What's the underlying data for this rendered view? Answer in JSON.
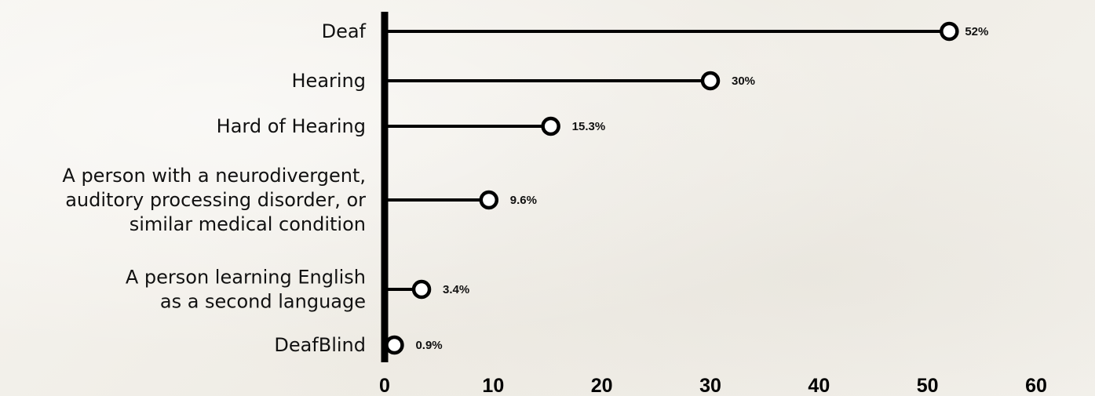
{
  "chart_data": {
    "type": "lollipop",
    "title": "",
    "xlabel": "",
    "ylabel": "",
    "xlim": [
      0,
      60
    ],
    "x_ticks": [
      "0",
      "10",
      "20",
      "30",
      "40",
      "50",
      "60"
    ],
    "grid": false,
    "legend": "none",
    "categories": [
      [
        "Deaf"
      ],
      [
        "Hearing"
      ],
      [
        "Hard of Hearing"
      ],
      [
        "A person with a neurodivergent,",
        "auditory processing disorder, or",
        "similar medical condition"
      ],
      [
        "A person learning English",
        "as a second language"
      ],
      [
        "DeafBlind"
      ]
    ],
    "values": [
      52,
      30,
      15.3,
      9.6,
      3.4,
      0.9
    ],
    "value_labels": [
      "52%",
      "30%",
      "15.3%",
      "9.6%",
      "3.4%",
      "0.9%"
    ],
    "colors": {
      "line": "#000000",
      "marker_fill": "#ffffff",
      "text": "#111111"
    }
  }
}
